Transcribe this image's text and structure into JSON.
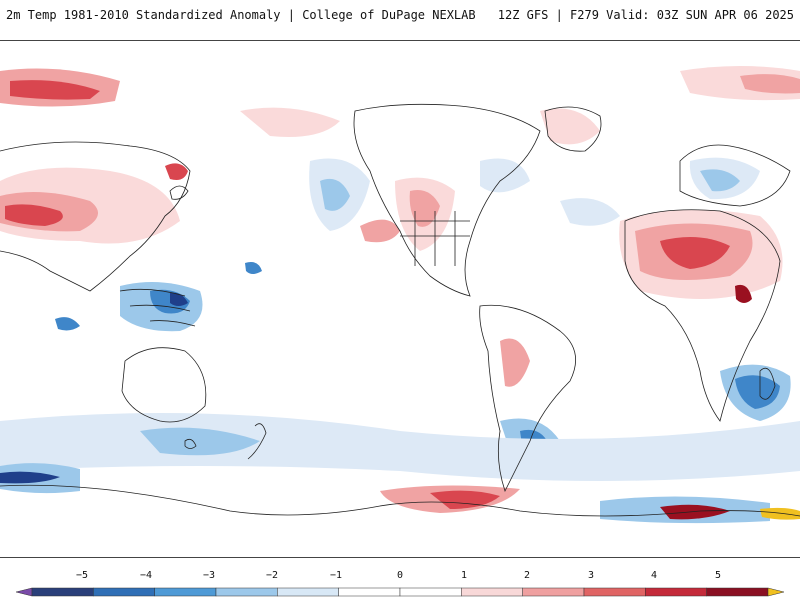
{
  "header": {
    "title_left": "2m Temp 1981-2010 Standardized Anomaly | College of DuPage NEXLAB",
    "title_right": "12Z GFS | F279 Valid: 03Z SUN APR 06 2025"
  },
  "colorbar": {
    "ticks": [
      "−5",
      "−4",
      "−3",
      "−2",
      "−1",
      "0",
      "1",
      "2",
      "3",
      "4",
      "5"
    ],
    "colors": [
      "#7a4ba8",
      "#2a3f7a",
      "#2f6fb6",
      "#4e9ad6",
      "#9cc8ea",
      "#d8e8f6",
      "#ffffff",
      "#ffffff",
      "#f8d8d8",
      "#efa0a0",
      "#e06464",
      "#c42a3a",
      "#8a0f22",
      "#f0c020"
    ]
  },
  "map": {
    "projection": "equirectangular-pacific-centered",
    "palette": {
      "ocean": "#ffffff",
      "coast": "#222222",
      "warm_light": "#fadada",
      "warm_mid": "#f0a3a3",
      "warm_strong": "#d9464f",
      "warm_extreme": "#9a1020",
      "cool_light": "#dde9f6",
      "cool_mid": "#9cc8ea",
      "cool_strong": "#3f86c9",
      "cool_extreme": "#1f3f8a"
    }
  }
}
